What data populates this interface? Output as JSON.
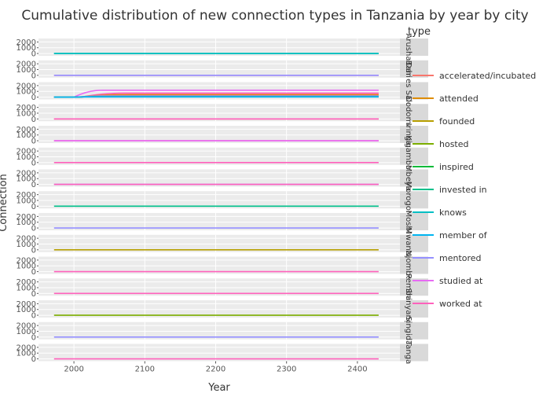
{
  "chart_data": {
    "type": "line",
    "title": "Cumulative distribution of new connection types in Tanzania by year by city",
    "xlabel": "Year",
    "ylabel": "Connection",
    "x_ticks": [
      2000,
      2100,
      2200,
      2300,
      2400
    ],
    "y_ticks": [
      0,
      1000,
      2000
    ],
    "xlim": [
      1950,
      2460
    ],
    "ylim": [
      -400,
      2600
    ],
    "x_start": 1972,
    "x_end": 2430,
    "legend_title": "type",
    "legend_position": "right",
    "series_colors": {
      "accelerated/incubated": "#f8766d",
      "attended": "#de8c00",
      "founded": "#b79f00",
      "hosted": "#7cae00",
      "inspired": "#00ba38",
      "invested in": "#00c08b",
      "knows": "#00bfc4",
      "member of": "#00b4f0",
      "mentored": "#9590ff",
      "studied at": "#e76bf3",
      "worked at": "#ff62bc"
    },
    "legend": [
      "accelerated/incubated",
      "attended",
      "founded",
      "hosted",
      "inspired",
      "invested in",
      "knows",
      "member of",
      "mentored",
      "studied at",
      "worked at"
    ],
    "panels": [
      {
        "label": "Arusha",
        "series": [
          {
            "type": "invested in",
            "value": 0
          },
          {
            "type": "knows",
            "value": 0
          }
        ]
      },
      {
        "label": "Bahi",
        "series": [
          {
            "type": "worked at",
            "value": 0
          },
          {
            "type": "mentored",
            "value": 0
          }
        ]
      },
      {
        "label": "Dar es Salaam",
        "series": [
          {
            "type": "studied at",
            "value": 1200,
            "ramp": [
              2000,
              2040
            ]
          },
          {
            "type": "worked at",
            "value": 700,
            "ramp": [
              2010,
              2070
            ]
          },
          {
            "type": "accelerated/incubated",
            "value": 500,
            "ramp": [
              2010,
              2080
            ]
          },
          {
            "type": "attended",
            "value": 350,
            "ramp": [
              2005,
              2060
            ]
          },
          {
            "type": "mentored",
            "value": 200,
            "ramp": [
              2005,
              2040
            ]
          },
          {
            "type": "invested in",
            "value": 60,
            "ramp": [
              2000,
              2030
            ]
          },
          {
            "type": "member of",
            "value": 40,
            "ramp": [
              2000,
              2030
            ]
          }
        ]
      },
      {
        "label": "Dodoma",
        "series": [
          {
            "type": "accelerated/incubated",
            "value": 0
          },
          {
            "type": "worked at",
            "value": 0
          }
        ]
      },
      {
        "label": "Iringa",
        "series": [
          {
            "type": "worked at",
            "value": 0
          },
          {
            "type": "studied at",
            "value": 0
          }
        ]
      },
      {
        "label": "Kigamboni",
        "series": [
          {
            "type": "worked at",
            "value": 0
          }
        ]
      },
      {
        "label": "Mbeya",
        "series": [
          {
            "type": "mentored",
            "value": 0
          },
          {
            "type": "worked at",
            "value": 0
          }
        ]
      },
      {
        "label": "Morogoro",
        "series": [
          {
            "type": "invested in",
            "value": 0
          }
        ]
      },
      {
        "label": "Moshi",
        "series": [
          {
            "type": "mentored",
            "value": 0
          }
        ]
      },
      {
        "label": "Mwanza",
        "series": [
          {
            "type": "founded",
            "value": 0
          }
        ]
      },
      {
        "label": "Njombe",
        "series": [
          {
            "type": "worked at",
            "value": 0
          }
        ]
      },
      {
        "label": "Pemba",
        "series": [
          {
            "type": "worked at",
            "value": 0
          }
        ]
      },
      {
        "label": "Shinyanga",
        "series": [
          {
            "type": "hosted",
            "value": 0
          }
        ]
      },
      {
        "label": "Singida",
        "series": [
          {
            "type": "mentored",
            "value": 0
          }
        ]
      },
      {
        "label": "Tanga",
        "series": [
          {
            "type": "worked at",
            "value": 0
          }
        ]
      }
    ]
  }
}
